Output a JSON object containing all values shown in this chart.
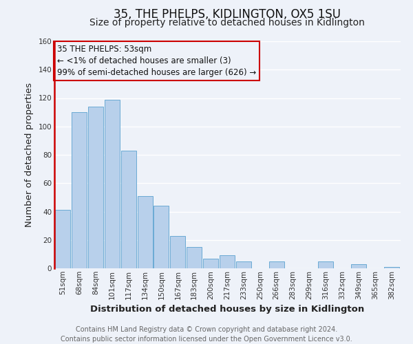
{
  "title": "35, THE PHELPS, KIDLINGTON, OX5 1SU",
  "subtitle": "Size of property relative to detached houses in Kidlington",
  "xlabel": "Distribution of detached houses by size in Kidlington",
  "ylabel": "Number of detached properties",
  "categories": [
    "51sqm",
    "68sqm",
    "84sqm",
    "101sqm",
    "117sqm",
    "134sqm",
    "150sqm",
    "167sqm",
    "183sqm",
    "200sqm",
    "217sqm",
    "233sqm",
    "250sqm",
    "266sqm",
    "283sqm",
    "299sqm",
    "316sqm",
    "332sqm",
    "349sqm",
    "365sqm",
    "382sqm"
  ],
  "values": [
    41,
    110,
    114,
    119,
    83,
    51,
    44,
    23,
    15,
    7,
    9,
    5,
    0,
    5,
    0,
    0,
    5,
    0,
    3,
    0,
    1
  ],
  "bar_color": "#b8d0eb",
  "bar_edge_color": "#6aaad4",
  "highlight_edge_color": "#cc0000",
  "annotation_line1": "35 THE PHELPS: 53sqm",
  "annotation_line2": "← <1% of detached houses are smaller (3)",
  "annotation_line3": "99% of semi-detached houses are larger (626) →",
  "annotation_box_edge_color": "#cc0000",
  "ylim": [
    0,
    160
  ],
  "yticks": [
    0,
    20,
    40,
    60,
    80,
    100,
    120,
    140,
    160
  ],
  "footer_line1": "Contains HM Land Registry data © Crown copyright and database right 2024.",
  "footer_line2": "Contains public sector information licensed under the Open Government Licence v3.0.",
  "background_color": "#eef2f9",
  "grid_color": "#ffffff",
  "title_fontsize": 12,
  "subtitle_fontsize": 10,
  "axis_label_fontsize": 9.5,
  "tick_fontsize": 7.5,
  "annotation_fontsize": 8.5,
  "footer_fontsize": 7
}
